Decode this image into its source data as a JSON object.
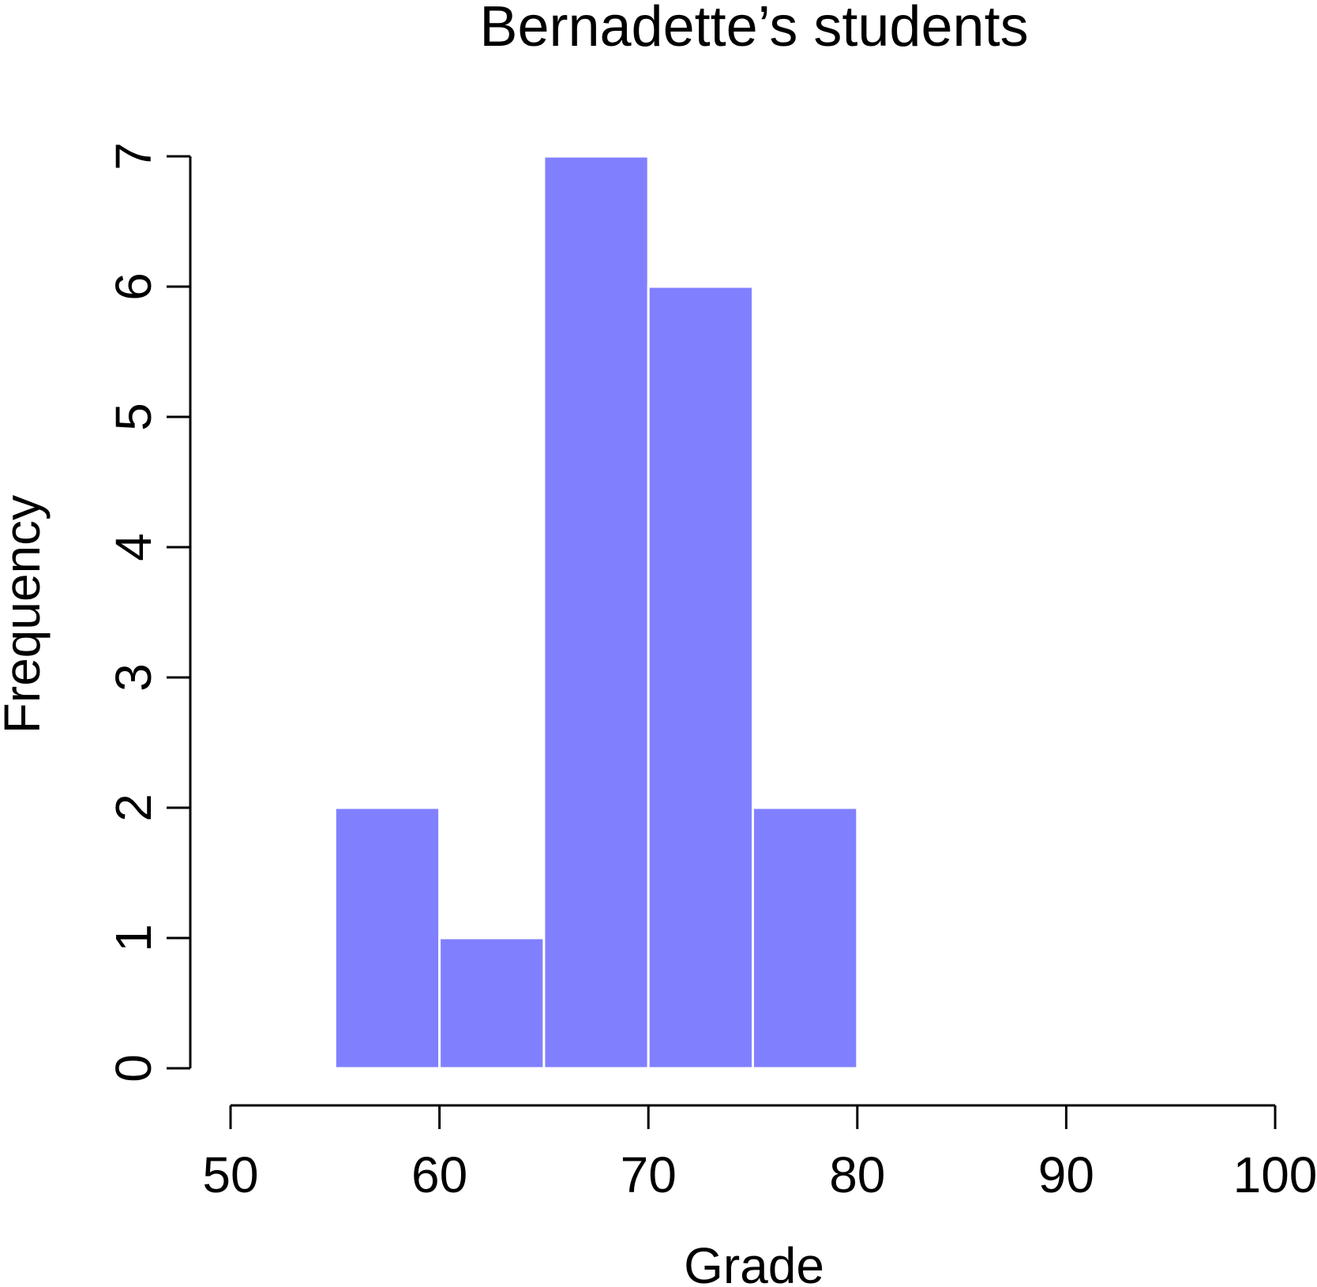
{
  "chart_data": {
    "type": "bar",
    "title": "Bernadette’s students",
    "xlabel": "Grade",
    "ylabel": "Frequency",
    "bins": [
      {
        "start": 55,
        "end": 60,
        "count": 2
      },
      {
        "start": 60,
        "end": 65,
        "count": 1
      },
      {
        "start": 65,
        "end": 70,
        "count": 7
      },
      {
        "start": 70,
        "end": 75,
        "count": 6
      },
      {
        "start": 75,
        "end": 80,
        "count": 2
      }
    ],
    "xlim": [
      50,
      100
    ],
    "ylim": [
      0,
      7
    ],
    "x_ticks": [
      "50",
      "60",
      "70",
      "80",
      "90",
      "100"
    ],
    "y_ticks": [
      "0",
      "1",
      "2",
      "3",
      "4",
      "5",
      "6",
      "7"
    ],
    "bar_color": "#8080ff",
    "bar_border_color": "#ffffff",
    "grid": false
  }
}
